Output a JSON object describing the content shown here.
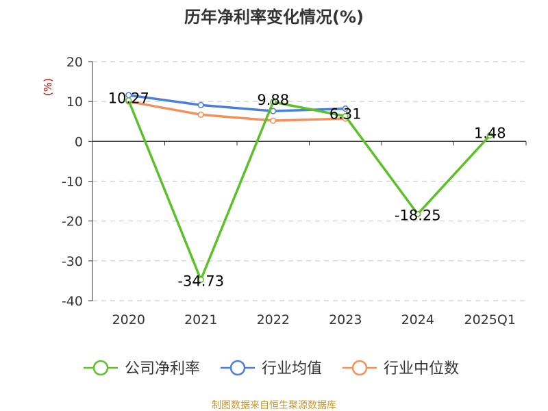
{
  "chart_data": {
    "type": "line",
    "title": "历年净利率变化情况(%)",
    "ylabel": "(%)",
    "xlabel": "",
    "categories": [
      "2020",
      "2021",
      "2022",
      "2023",
      "2024",
      "2025Q1"
    ],
    "ylim": [
      -40,
      20
    ],
    "yticks": [
      20,
      10,
      0,
      -10,
      -20,
      -30,
      -40
    ],
    "grid": true,
    "legend_position": "bottom",
    "series": [
      {
        "name": "公司净利率",
        "color": "#5cc128",
        "values": [
          10.27,
          -34.73,
          9.88,
          6.31,
          -18.25,
          1.48
        ],
        "labels": [
          "10.27",
          "-34.73",
          "9.88",
          "6.31",
          "-18.25",
          "1.48"
        ]
      },
      {
        "name": "行业均值",
        "color": "#4a7fdc",
        "values": [
          11.6,
          9.1,
          7.6,
          8.2,
          null,
          null
        ],
        "labels": []
      },
      {
        "name": "行业中位数",
        "color": "#f4915a",
        "values": [
          10.0,
          6.7,
          5.2,
          5.7,
          null,
          null
        ],
        "labels": []
      }
    ]
  },
  "footer": {
    "source": "制图数据来自恒生聚源数据库"
  },
  "colors": {
    "title": "#333333",
    "axis": "#333333",
    "grid": "#cccccc",
    "ylabel": "#cc0000",
    "source": "#c8962a"
  }
}
